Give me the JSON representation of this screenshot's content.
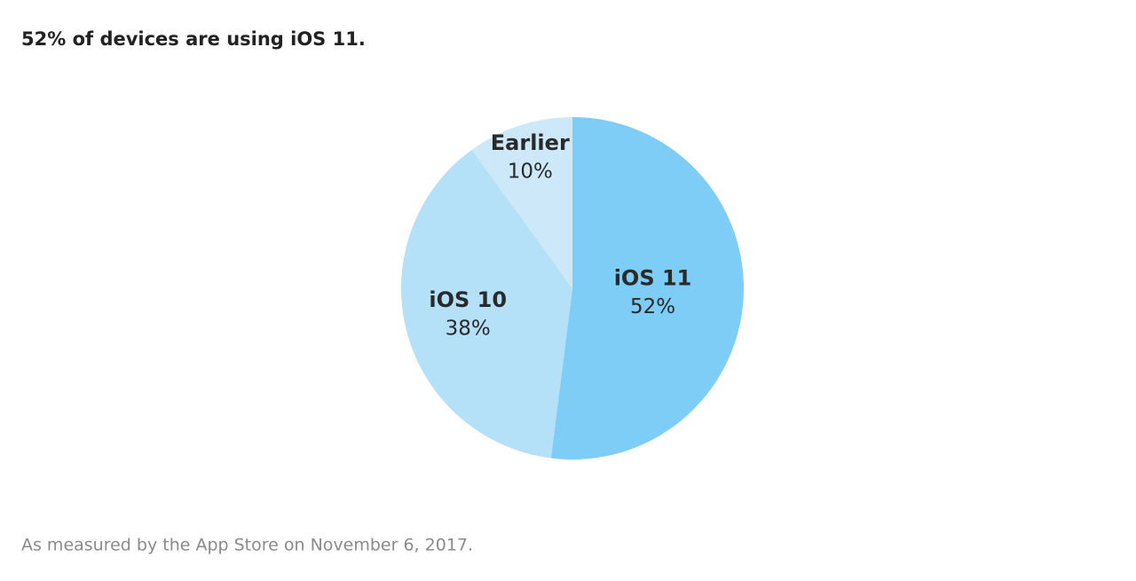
{
  "chart_data": {
    "type": "pie",
    "title": "52% of devices are using iOS 11.",
    "categories": [
      "iOS 11",
      "iOS 10",
      "Earlier"
    ],
    "values": [
      52,
      38,
      10
    ],
    "value_labels": [
      "52%",
      "38%",
      "10%"
    ],
    "colors": [
      "#7dcdf7",
      "#b4e0f8",
      "#cde9f9"
    ],
    "footnote": "As measured by the App Store on November 6, 2017."
  }
}
